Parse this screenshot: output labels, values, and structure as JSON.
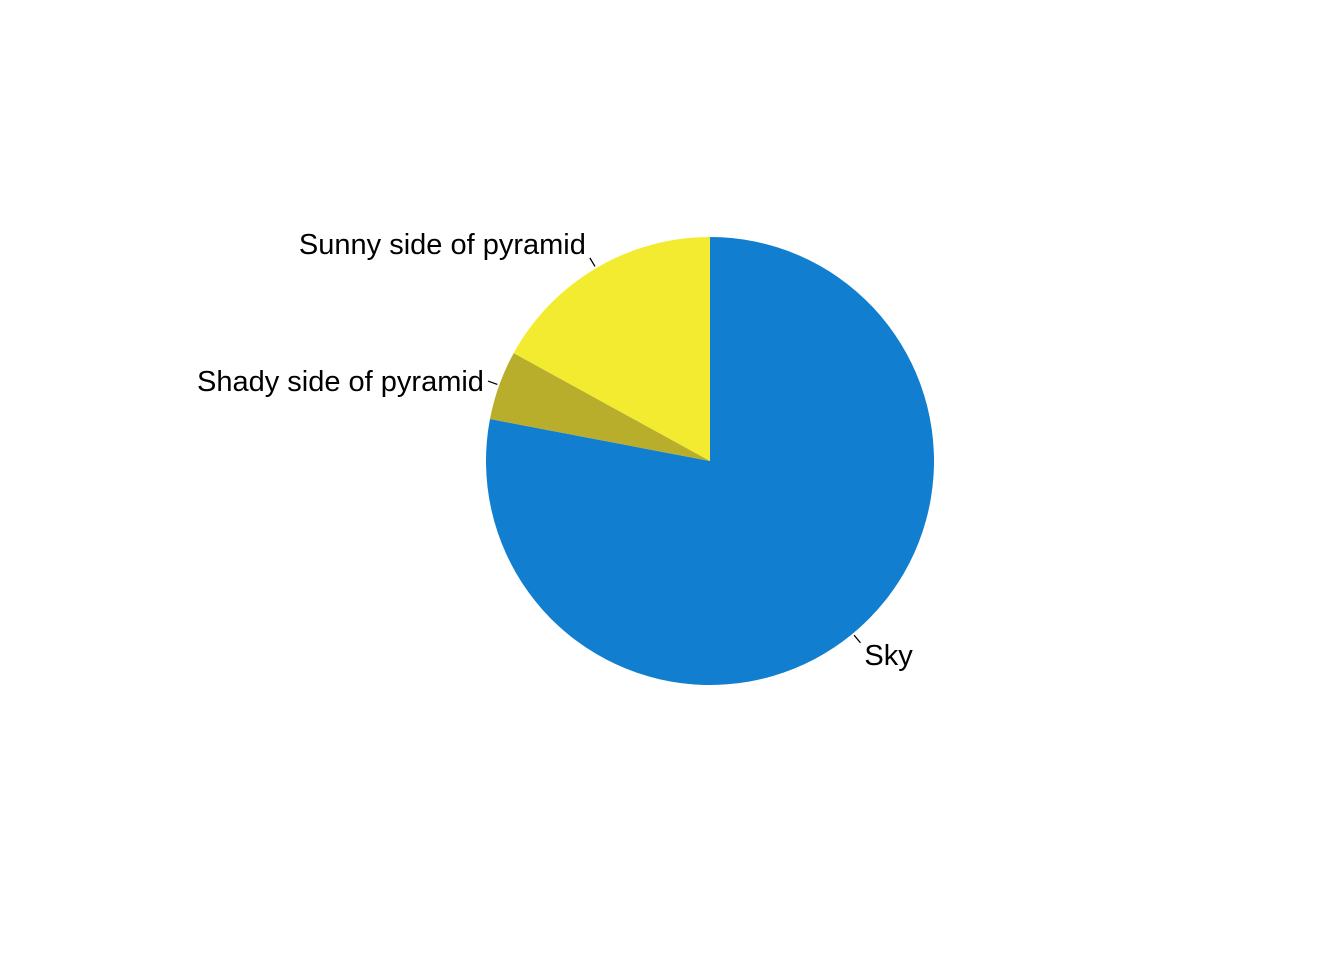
{
  "chart_data": {
    "type": "pie",
    "title": "",
    "start_angle_deg": 0,
    "direction": "clockwise",
    "slices": [
      {
        "label": "Sky",
        "value": 0.78,
        "color": "#117ECF"
      },
      {
        "label": "Shady side of pyramid",
        "value": 0.05,
        "color": "#B8AE2B"
      },
      {
        "label": "Sunny side of pyramid",
        "value": 0.17,
        "color": "#F3EB2F"
      }
    ]
  }
}
